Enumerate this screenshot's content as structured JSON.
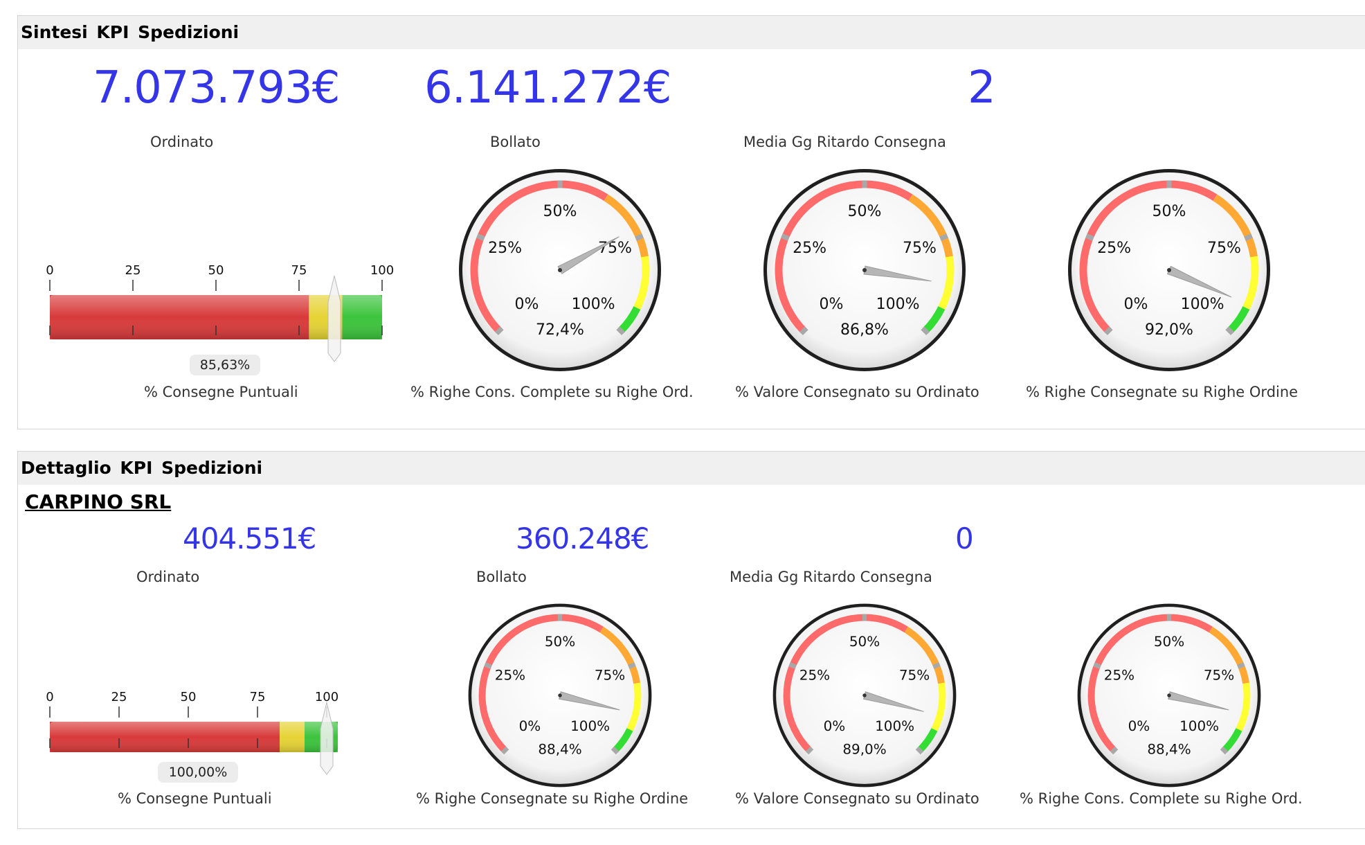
{
  "summary": {
    "title": "Sintesi KPI Spedizioni",
    "ordinato_value": "7.073.793€",
    "ordinato_label": "Ordinato",
    "bollato_value": "6.141.272€",
    "bollato_label": "Bollato",
    "ritardo_value": "2",
    "ritardo_label": "Media Gg Ritardo Consegna",
    "bullet": {
      "label": "% Consegne Puntuali",
      "value_text": "85,63%",
      "value": 85.63,
      "ticks": [
        "0",
        "25",
        "50",
        "75",
        "100"
      ],
      "bands": [
        {
          "from": 0,
          "to": 78,
          "color": "#d83a3a"
        },
        {
          "from": 78,
          "to": 88,
          "color": "#e6d335"
        },
        {
          "from": 88,
          "to": 100,
          "color": "#3cc43c"
        }
      ]
    },
    "gauges": [
      {
        "label": "% Righe Cons. Complete su Righe Ord.",
        "value_text": "72,4%",
        "value": 72.4
      },
      {
        "label": "% Valore Consegnato su Ordinato",
        "value_text": "86,8%",
        "value": 86.8
      },
      {
        "label": "% Righe Consegnate su Righe Ordine",
        "value_text": "92,0%",
        "value": 92.0
      }
    ]
  },
  "detail": {
    "title": "Dettaglio KPI Spedizioni",
    "company": "CARPINO SRL",
    "ordinato_value": "404.551€",
    "ordinato_label": "Ordinato",
    "bollato_value": "360.248€",
    "bollato_label": "Bollato",
    "ritardo_value": "0",
    "ritardo_label": "Media Gg Ritardo Consegna",
    "bullet": {
      "label": "% Consegne Puntuali",
      "value_text": "100,00%",
      "value": 100.0,
      "ticks": [
        "0",
        "25",
        "50",
        "75",
        "100"
      ],
      "bands": [
        {
          "from": 0,
          "to": 83,
          "color": "#d83a3a"
        },
        {
          "from": 83,
          "to": 92,
          "color": "#e6d335"
        },
        {
          "from": 92,
          "to": 104,
          "color": "#3cc43c"
        }
      ]
    },
    "gauges": [
      {
        "label": "% Righe Consegnate su Righe Ordine",
        "value_text": "88,4%",
        "value": 88.4
      },
      {
        "label": "% Valore Consegnato su Ordinato",
        "value_text": "89,0%",
        "value": 89.0
      },
      {
        "label": "% Righe Cons. Complete su Righe Ord.",
        "value_text": "88,4%",
        "value": 88.4
      }
    ]
  },
  "gauge_scale": {
    "tick_labels": [
      "0%",
      "25%",
      "50%",
      "75%",
      "100%"
    ],
    "bands": [
      {
        "from": 0,
        "to": 62,
        "color": "#ff6b6b"
      },
      {
        "from": 62,
        "to": 80,
        "color": "#ffa833"
      },
      {
        "from": 80,
        "to": 93,
        "color": "#ffff33"
      },
      {
        "from": 93,
        "to": 100,
        "color": "#33dd33"
      }
    ]
  }
}
